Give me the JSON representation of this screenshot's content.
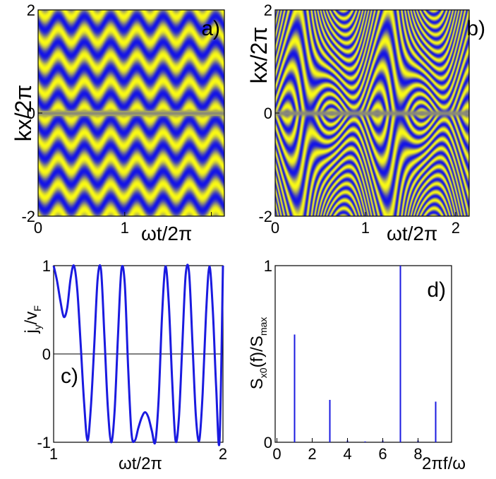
{
  "chart_data": [
    {
      "type": "heatmap",
      "panel_label": "a)",
      "xlabel": "ωt/2π",
      "ylabel": "kx/2π",
      "xlim": [
        0,
        2.15
      ],
      "ylim": [
        -2,
        2
      ],
      "xticks": [
        {
          "value": 0,
          "label": "0"
        },
        {
          "value": 1,
          "label": "1"
        },
        {
          "value": 2,
          "label": ""
        }
      ],
      "yticks": [
        {
          "value": -2,
          "label": "-2"
        },
        {
          "value": 0,
          "label": "0"
        },
        {
          "value": 2,
          "label": "2"
        }
      ],
      "colors": {
        "low": "#1414e6",
        "high": "#fafa14",
        "mid": "#8a8a78"
      },
      "pattern": {
        "stripes_per_unit_y": 2.0,
        "amplitude": 0.13,
        "time_frequency": 3.3
      }
    },
    {
      "type": "heatmap",
      "panel_label": "b)",
      "xlabel": "ωt/2π",
      "ylabel": "kx/2π",
      "xlim": [
        0,
        2.15
      ],
      "ylim": [
        -2,
        2
      ],
      "xticks": [
        {
          "value": 0,
          "label": "0"
        },
        {
          "value": 1,
          "label": "1"
        },
        {
          "value": 2,
          "label": "2"
        }
      ],
      "yticks": [
        {
          "value": -2,
          "label": "-2"
        },
        {
          "value": 0,
          "label": "0"
        },
        {
          "value": 2,
          "label": "2"
        }
      ],
      "colors": {
        "low": "#1414e6",
        "high": "#fafa14",
        "mid": "#8a8a78"
      },
      "pattern": {
        "stripes_per_unit_y": 4.0,
        "amplitude": 1.05,
        "time_frequency": 1.0
      }
    },
    {
      "type": "line",
      "panel_label": "c)",
      "xlabel": "ωt/2π",
      "ylabel": "j",
      "ylabel_sub": "y",
      "ylabel_mid": "/v",
      "ylabel_sub2": "F",
      "xlim": [
        1,
        2
      ],
      "ylim": [
        -1,
        1
      ],
      "xticks": [
        {
          "value": 1,
          "label": "1"
        },
        {
          "value": 2,
          "label": "2"
        }
      ],
      "yticks": [
        {
          "value": -1,
          "label": "-1"
        },
        {
          "value": 0,
          "label": "0"
        },
        {
          "value": 1,
          "label": "1"
        }
      ],
      "zero_line": true,
      "color": "#1a1ae0",
      "x": [
        1.0,
        1.02,
        1.04,
        1.06,
        1.08,
        1.1,
        1.12,
        1.14,
        1.16,
        1.18,
        1.2,
        1.22,
        1.24,
        1.26,
        1.28,
        1.3,
        1.32,
        1.34,
        1.36,
        1.38,
        1.4,
        1.42,
        1.44,
        1.46,
        1.48,
        1.5,
        1.52,
        1.54,
        1.56,
        1.58,
        1.6,
        1.62,
        1.64,
        1.66,
        1.68,
        1.7,
        1.72,
        1.74,
        1.76,
        1.78,
        1.8,
        1.82,
        1.84,
        1.86,
        1.88,
        1.9,
        1.92,
        1.94,
        1.96,
        1.98,
        2.0
      ],
      "y": [
        1.0,
        0.83,
        0.6,
        0.42,
        0.52,
        0.85,
        1.0,
        0.72,
        0.1,
        -0.55,
        -0.98,
        -0.6,
        0.1,
        0.85,
        0.95,
        0.2,
        -0.6,
        -1.0,
        -0.65,
        0.2,
        0.95,
        0.8,
        -0.15,
        -0.9,
        -0.98,
        -0.84,
        -0.72,
        -0.66,
        -0.72,
        -0.87,
        -1.0,
        -0.52,
        0.42,
        0.99,
        0.58,
        -0.3,
        -0.98,
        -0.72,
        0.1,
        0.9,
        0.92,
        0.12,
        -0.7,
        -0.98,
        -0.45,
        0.45,
        0.99,
        0.5,
        -0.38,
        -0.98,
        1.0
      ]
    },
    {
      "type": "bar",
      "panel_label": "d)",
      "xlabel": "2πf/ω",
      "ylabel": "S",
      "ylabel_sub": "x0",
      "ylabel_mid": "(f)/S",
      "ylabel_sub2": "max",
      "xlim": [
        -0.1,
        9.9
      ],
      "ylim": [
        0,
        1
      ],
      "xticks": [
        {
          "value": 0,
          "label": "0"
        },
        {
          "value": 2,
          "label": "2"
        },
        {
          "value": 4,
          "label": "4"
        },
        {
          "value": 6,
          "label": "6"
        },
        {
          "value": 8,
          "label": "8"
        }
      ],
      "yticks": [
        {
          "value": 0,
          "label": "0"
        },
        {
          "value": 1,
          "label": "1"
        }
      ],
      "color": "#1a1ae0",
      "x": [
        1,
        3,
        4,
        5,
        6,
        7,
        8,
        9
      ],
      "values": [
        0.61,
        0.24,
        0.01,
        0.005,
        0.01,
        1.0,
        0.01,
        0.23
      ]
    }
  ]
}
